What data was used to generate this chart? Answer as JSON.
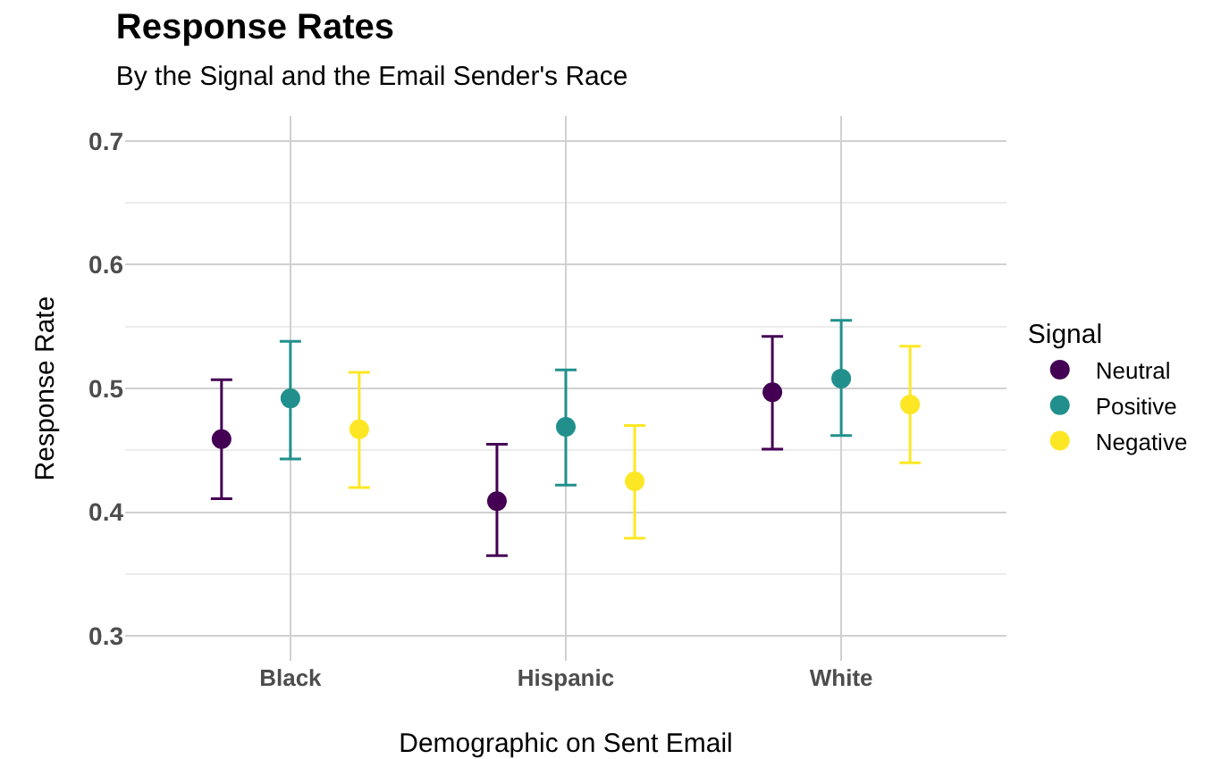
{
  "chart_data": {
    "type": "scatter",
    "title": "Response Rates",
    "subtitle": "By the Signal and the Email Sender's Race",
    "xlabel": "Demographic on Sent Email",
    "ylabel": "Response Rate",
    "legend_title": "Signal",
    "categories": [
      "Black",
      "Hispanic",
      "White"
    ],
    "series": [
      {
        "name": "Neutral",
        "color": "#440154",
        "values": [
          0.459,
          0.409,
          0.497
        ],
        "errors": [
          [
            0.411,
            0.507
          ],
          [
            0.365,
            0.455
          ],
          [
            0.451,
            0.542
          ]
        ]
      },
      {
        "name": "Positive",
        "color": "#21908c",
        "values": [
          0.492,
          0.469,
          0.508
        ],
        "errors": [
          [
            0.443,
            0.538
          ],
          [
            0.422,
            0.515
          ],
          [
            0.462,
            0.555
          ]
        ]
      },
      {
        "name": "Negative",
        "color": "#fde725",
        "values": [
          0.467,
          0.425,
          0.487
        ],
        "errors": [
          [
            0.42,
            0.513
          ],
          [
            0.379,
            0.47
          ],
          [
            0.44,
            0.534
          ]
        ]
      }
    ],
    "ylim": [
      0.28,
      0.72
    ],
    "yticks": [
      0.3,
      0.4,
      0.5,
      0.6,
      0.7
    ],
    "grid": true,
    "legend": "right",
    "marker": "circle"
  }
}
